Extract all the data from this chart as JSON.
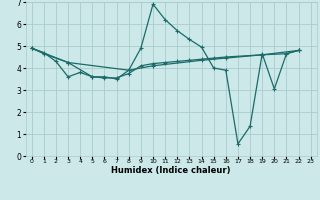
{
  "xlabel": "Humidex (Indice chaleur)",
  "bg_color": "#cce8e8",
  "grid_color": "#aacccc",
  "line_color": "#1a6b6a",
  "xlim": [
    -0.5,
    23.5
  ],
  "ylim": [
    0,
    7
  ],
  "xticks": [
    0,
    1,
    2,
    3,
    4,
    5,
    6,
    7,
    8,
    9,
    10,
    11,
    12,
    13,
    14,
    15,
    16,
    17,
    18,
    19,
    20,
    21,
    22,
    23
  ],
  "yticks": [
    0,
    1,
    2,
    3,
    4,
    5,
    6,
    7
  ],
  "series1": [
    [
      0,
      4.9
    ],
    [
      1,
      4.7
    ],
    [
      2,
      4.3
    ],
    [
      3,
      3.6
    ],
    [
      4,
      3.8
    ],
    [
      5,
      3.6
    ],
    [
      6,
      3.6
    ],
    [
      7,
      3.5
    ],
    [
      8,
      3.9
    ],
    [
      9,
      4.9
    ],
    [
      10,
      6.9
    ],
    [
      11,
      6.2
    ],
    [
      12,
      5.7
    ],
    [
      13,
      5.3
    ],
    [
      14,
      4.95
    ],
    [
      15,
      4.0
    ],
    [
      16,
      3.9
    ],
    [
      17,
      0.55
    ],
    [
      18,
      1.35
    ],
    [
      19,
      4.65
    ],
    [
      20,
      3.05
    ],
    [
      21,
      4.65
    ],
    [
      22,
      4.8
    ]
  ],
  "series2": [
    [
      0,
      4.9
    ],
    [
      1,
      4.65
    ],
    [
      3,
      4.25
    ],
    [
      5,
      3.6
    ],
    [
      6,
      3.55
    ],
    [
      7,
      3.55
    ],
    [
      8,
      3.75
    ],
    [
      9,
      4.1
    ],
    [
      10,
      4.2
    ],
    [
      11,
      4.25
    ],
    [
      12,
      4.3
    ],
    [
      13,
      4.35
    ],
    [
      14,
      4.4
    ],
    [
      15,
      4.45
    ],
    [
      16,
      4.5
    ],
    [
      19,
      4.6
    ],
    [
      21,
      4.65
    ],
    [
      22,
      4.8
    ]
  ],
  "series3": [
    [
      0,
      4.9
    ],
    [
      3,
      4.25
    ],
    [
      8,
      3.9
    ],
    [
      10,
      4.1
    ],
    [
      14,
      4.35
    ],
    [
      16,
      4.45
    ],
    [
      19,
      4.6
    ],
    [
      22,
      4.8
    ]
  ]
}
